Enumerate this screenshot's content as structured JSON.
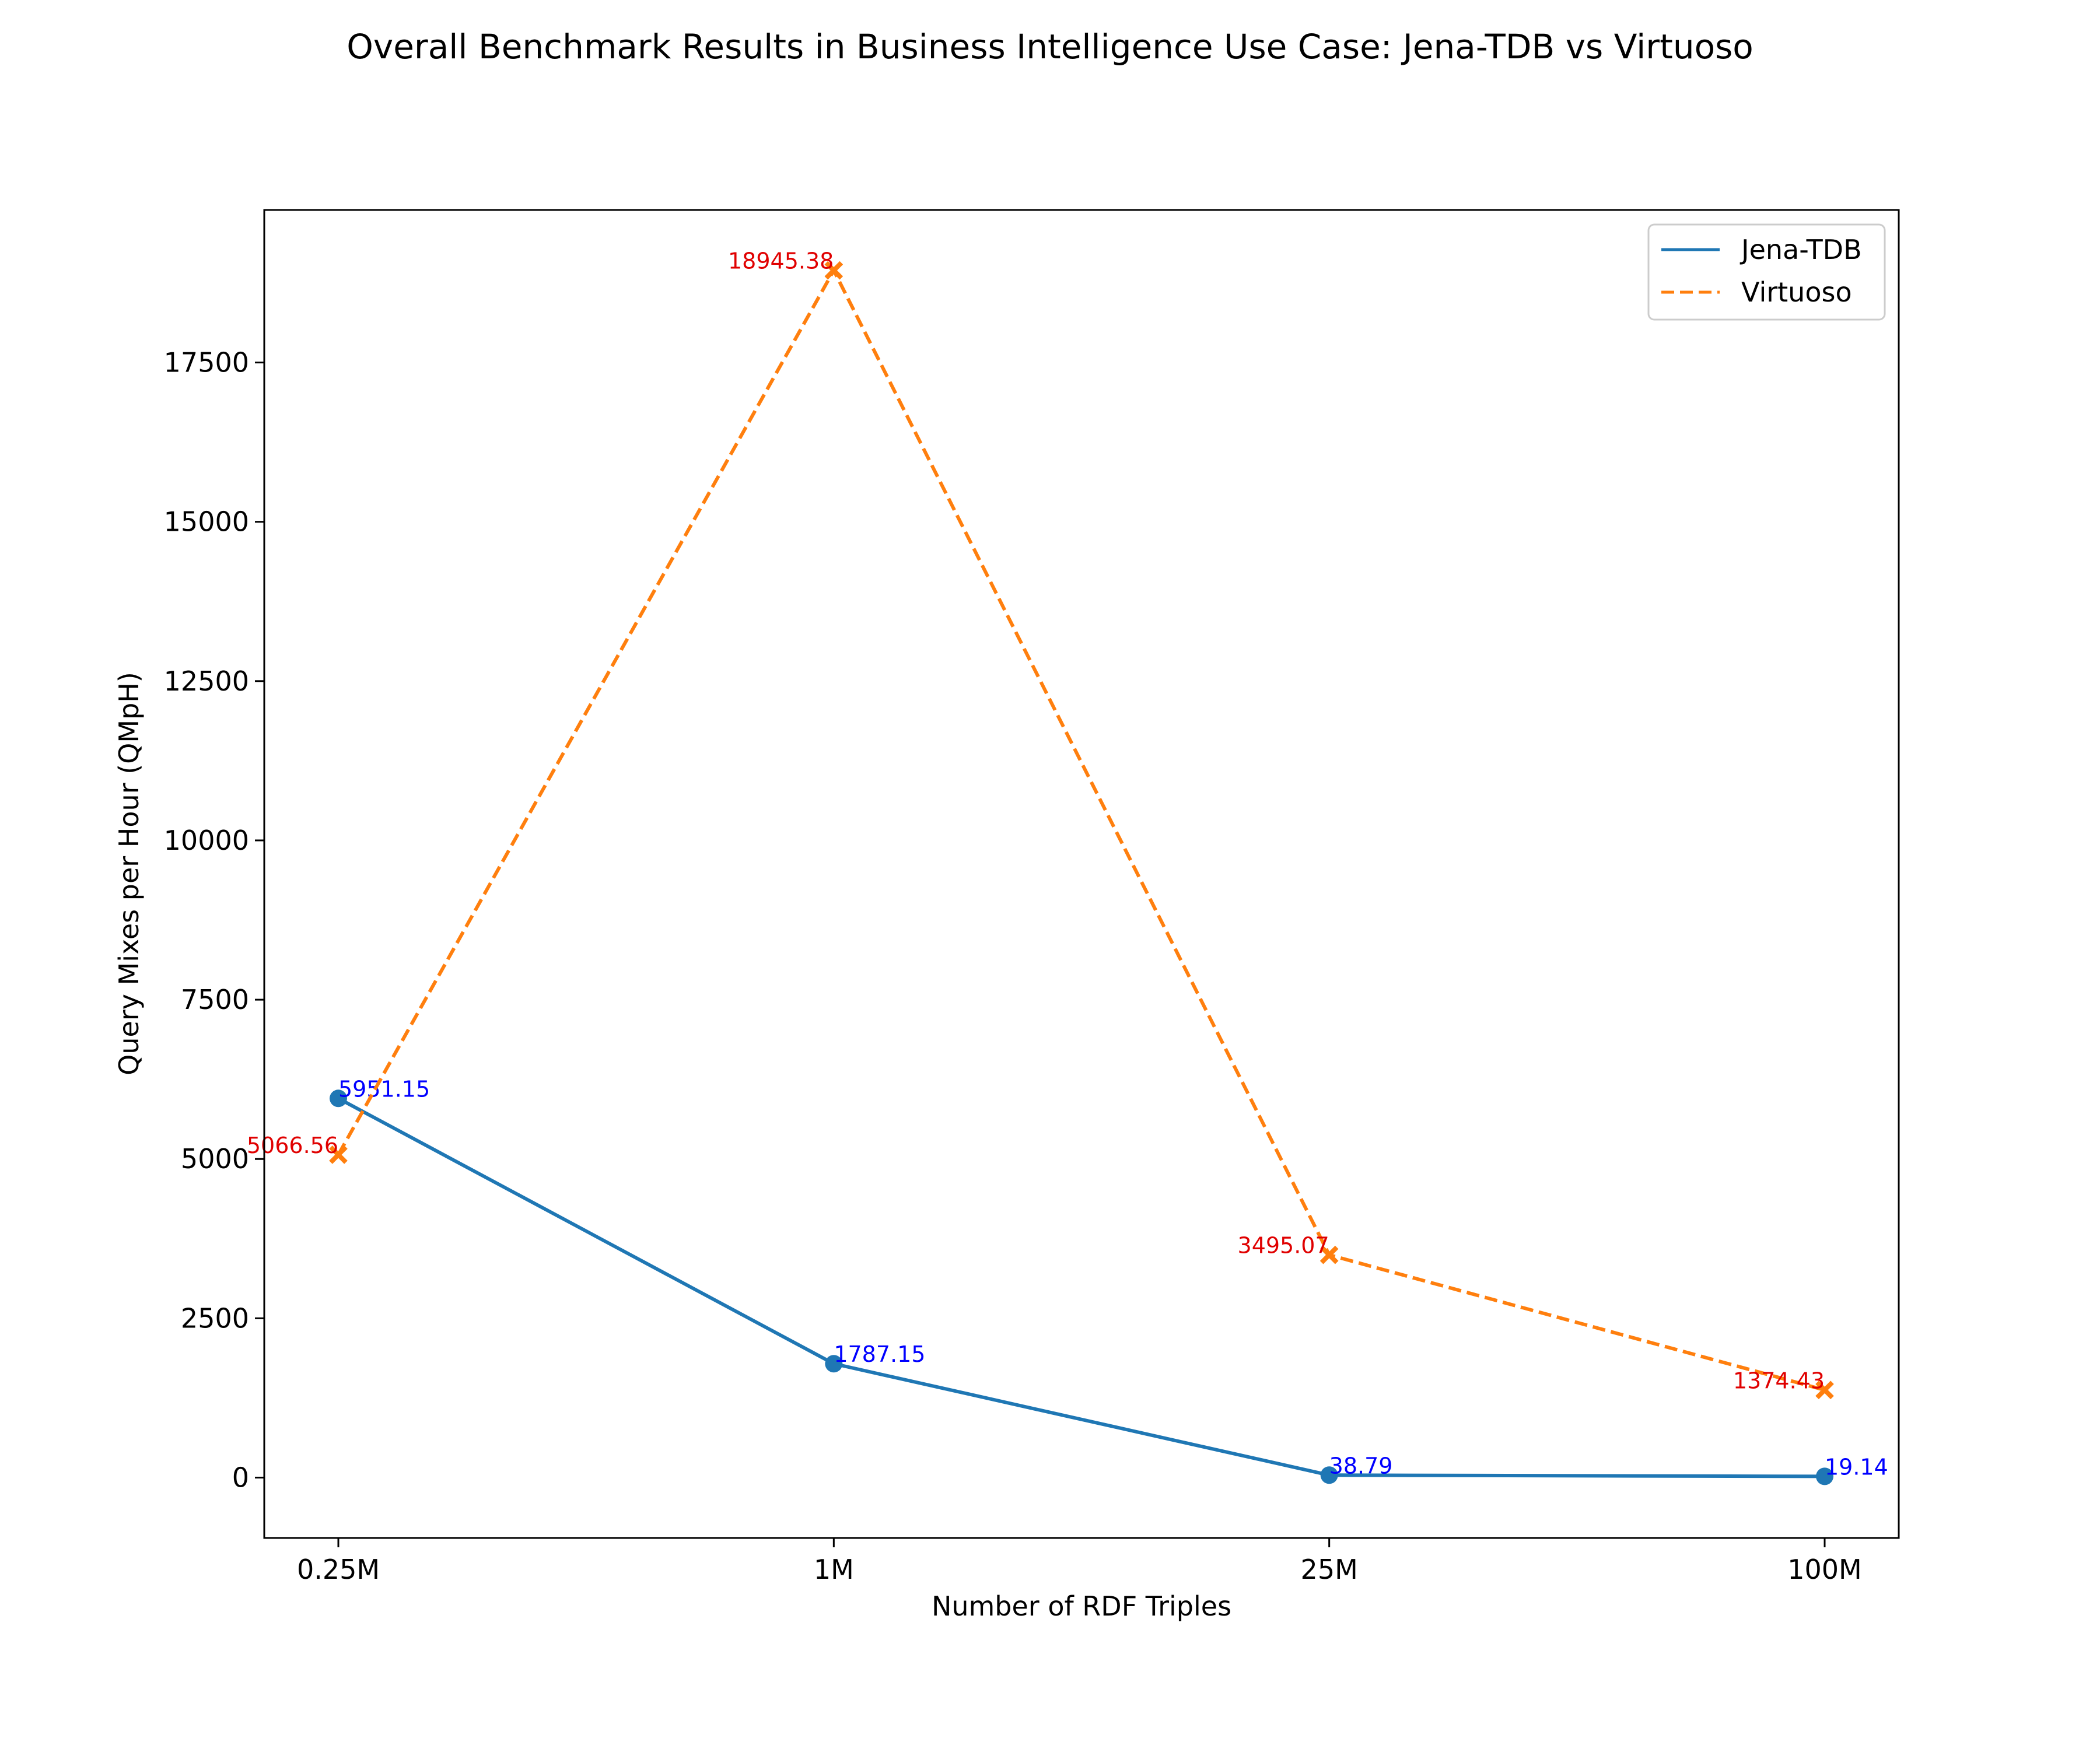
{
  "chart_data": {
    "type": "line",
    "title": "Overall Benchmark Results in Business Intelligence Use Case: Jena-TDB vs Virtuoso",
    "xlabel": "Number of RDF Triples",
    "ylabel": "Query Mixes per Hour (QMpH)",
    "categories": [
      "0.25M",
      "1M",
      "25M",
      "100M"
    ],
    "yticks": [
      0,
      2500,
      5000,
      7500,
      10000,
      12500,
      15000,
      17500
    ],
    "ylim": [
      -947.29,
      19893.84
    ],
    "grid": false,
    "legend_position": "top-right",
    "series": [
      {
        "name": "Jena-TDB",
        "values": [
          5951.15,
          1787.15,
          38.79,
          19.14
        ],
        "labels": [
          "5951.15",
          "1787.15",
          "38.79",
          "19.14"
        ],
        "color": "#1f77b4",
        "label_color": "#0000ff",
        "line_style": "solid",
        "marker": "circle"
      },
      {
        "name": "Virtuoso",
        "values": [
          5066.56,
          18945.38,
          3495.07,
          1374.43
        ],
        "labels": [
          "5066.56",
          "18945.38",
          "3495.07",
          "1374.43"
        ],
        "color": "#ff7f0e",
        "label_color": "#e00000",
        "line_style": "dashed",
        "marker": "x"
      }
    ]
  }
}
